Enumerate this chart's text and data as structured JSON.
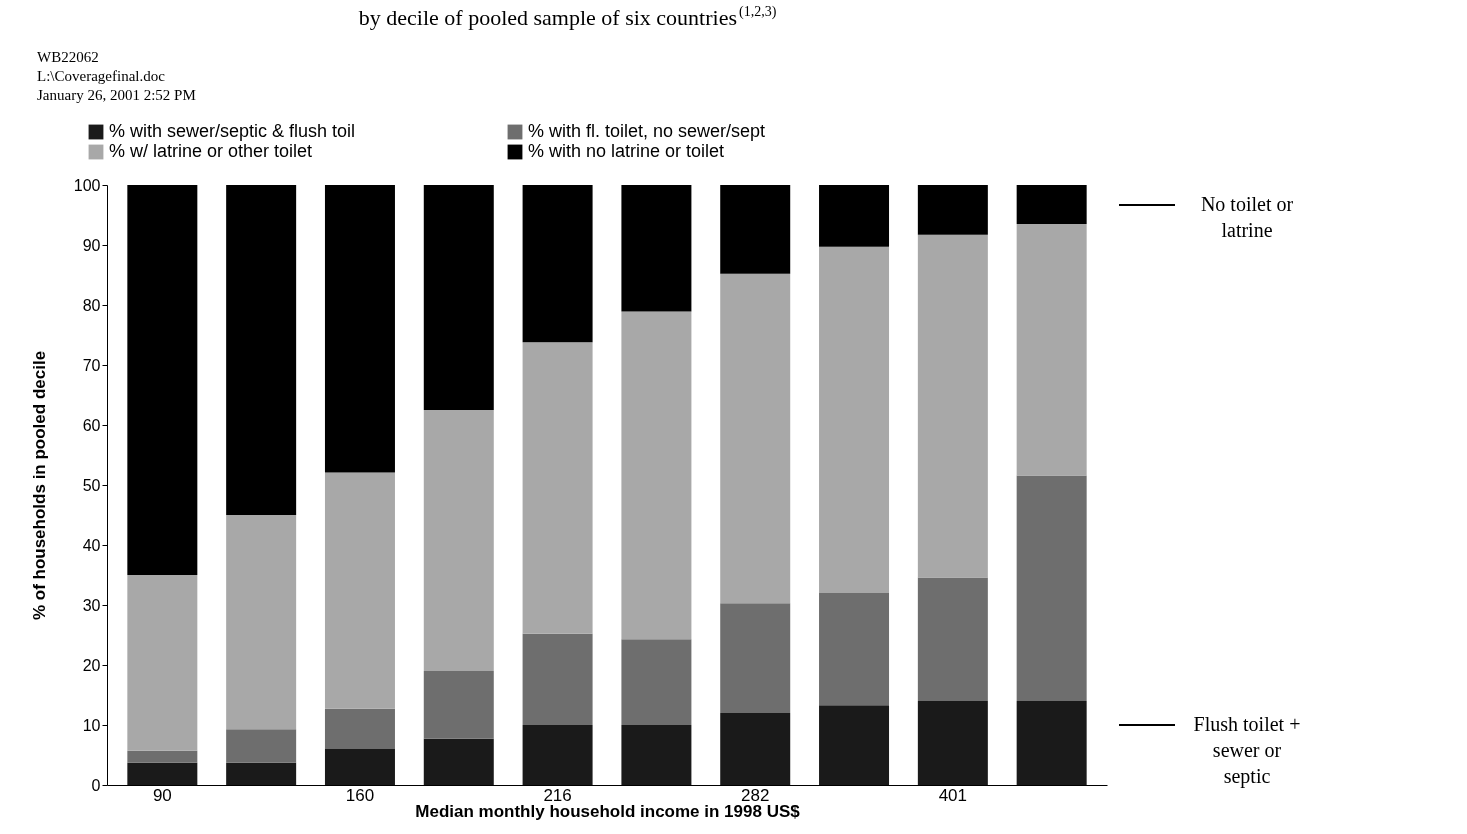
{
  "chart_data": {
    "type": "bar",
    "stacked": true,
    "title": "by decile of pooled sample of six countries$^{(1,2,3)}$",
    "xlabel": "Median monthly household income in 1998 US$",
    "ylabel": "% of households in pooled decile",
    "categories": [
      "90",
      null,
      "160",
      null,
      "216",
      null,
      "282",
      null,
      "401",
      null
    ],
    "series": [
      {
        "name": "% with sewer/septic & flush toil",
        "color": "#1a1a1a",
        "values": [
          3.7,
          3.7,
          6,
          7.7,
          10,
          10,
          12,
          13.3,
          14,
          14
        ]
      },
      {
        "name": "% with fl. toilet, no sewer/sept",
        "color": "#6e6e6e",
        "values": [
          2.0,
          5.6,
          6.7,
          11.3,
          15.2,
          14.3,
          18.3,
          18.7,
          20.6,
          37.6
        ]
      },
      {
        "name": "% w/ latrine or other toilet",
        "color": "#a8a8a8",
        "values": [
          29.3,
          35.7,
          39.4,
          43.5,
          48.6,
          54.6,
          54.9,
          57.7,
          57.1,
          41.9
        ]
      },
      {
        "name": "% with no latrine or toilet",
        "color": "#000000",
        "values": [
          65,
          55,
          47.9,
          37.5,
          26.2,
          21.1,
          14.8,
          10.3,
          8.3,
          6.5
        ]
      }
    ],
    "ylim": [
      0,
      100
    ],
    "yticks": [
      0,
      10,
      20,
      30,
      40,
      50,
      60,
      70,
      80,
      90,
      100
    ],
    "grid": false,
    "legend": "top",
    "annotations": [
      "WB22062",
      "L:\\Coveragefinal.doc",
      "January 26, 2001 2:52 PM",
      "No toilet or latrine",
      "Flush toilet + sewer or septic"
    ]
  }
}
